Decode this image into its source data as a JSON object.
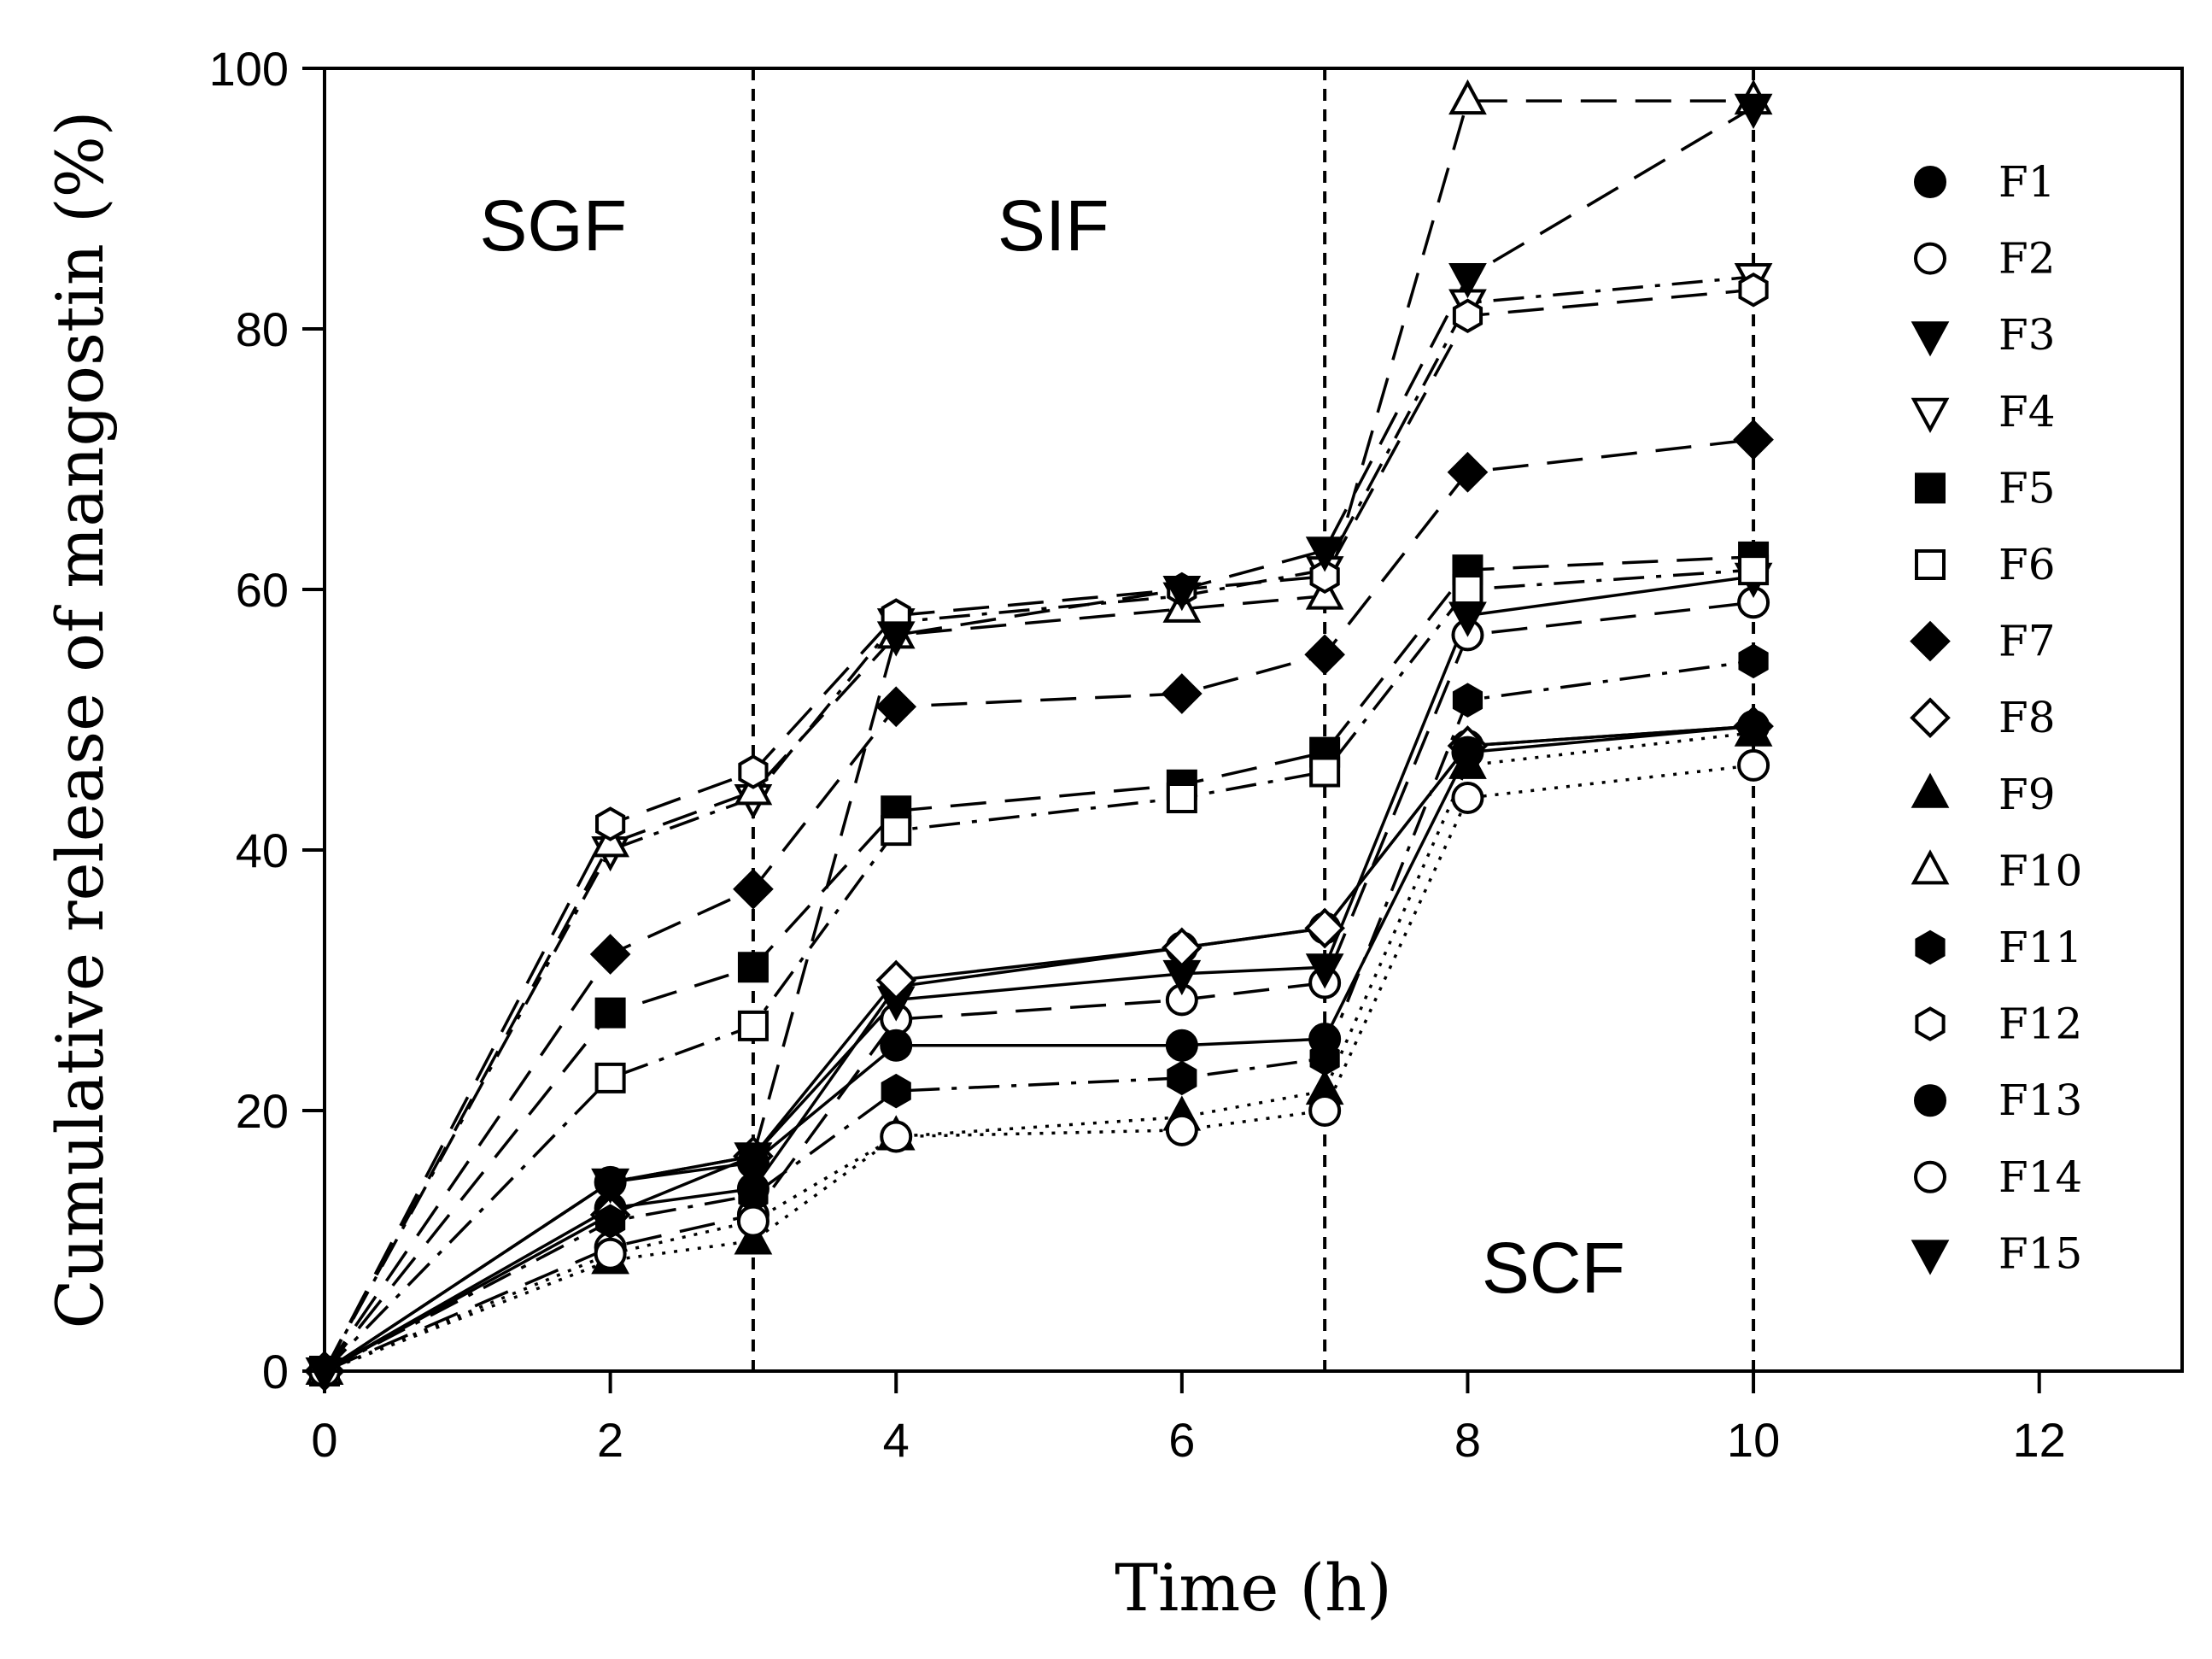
{
  "chart_data": {
    "type": "line",
    "title": "",
    "xlabel": "Time (h)",
    "ylabel": "Cumulative release of mangostin (%)",
    "xlim": [
      0,
      13
    ],
    "ylim": [
      0,
      100
    ],
    "xticks": [
      0,
      2,
      4,
      6,
      8,
      10,
      12
    ],
    "yticks": [
      0,
      20,
      40,
      60,
      80,
      100
    ],
    "x": [
      0,
      2,
      3,
      4,
      6,
      7,
      8,
      10
    ],
    "grid": false,
    "legend_position": "right",
    "phase_dividers": [
      3,
      7,
      10
    ],
    "phase_labels": [
      {
        "text": "SGF",
        "x": 1.6,
        "y": 88
      },
      {
        "text": "SIF",
        "x": 5.1,
        "y": 88
      },
      {
        "text": "SCF",
        "x": 8.6,
        "y": 8
      }
    ],
    "series": [
      {
        "name": "F1",
        "marker": "circle",
        "fill": "filled",
        "dash": "solid",
        "values": [
          0,
          12.5,
          14.0,
          29.5,
          32.5,
          34.0,
          48.0,
          49.5
        ]
      },
      {
        "name": "F2",
        "marker": "circle",
        "fill": "open",
        "dash": "longdash",
        "values": [
          0,
          9.5,
          12.0,
          27.0,
          28.5,
          29.8,
          56.5,
          59.0
        ]
      },
      {
        "name": "F3",
        "marker": "triangle-down",
        "fill": "filled",
        "dash": "solid",
        "values": [
          0,
          14.5,
          16.5,
          28.5,
          30.5,
          31.0,
          58.0,
          61.0
        ]
      },
      {
        "name": "F4",
        "marker": "triangle-down",
        "fill": "open",
        "dash": "dashdot",
        "values": [
          0,
          40.0,
          44.0,
          57.5,
          59.5,
          61.5,
          82.0,
          84.0
        ]
      },
      {
        "name": "F5",
        "marker": "square",
        "fill": "filled",
        "dash": "longdash",
        "values": [
          0,
          27.5,
          31.0,
          43.0,
          45.0,
          47.5,
          61.5,
          62.5
        ]
      },
      {
        "name": "F6",
        "marker": "square",
        "fill": "open",
        "dash": "dashdot",
        "values": [
          0,
          22.5,
          26.5,
          41.5,
          44.0,
          46.0,
          60.0,
          61.5
        ]
      },
      {
        "name": "F7",
        "marker": "diamond",
        "fill": "filled",
        "dash": "longdash",
        "values": [
          0,
          32.0,
          37.0,
          51.0,
          52.0,
          55.0,
          69.0,
          71.5
        ]
      },
      {
        "name": "F8",
        "marker": "diamond",
        "fill": "open",
        "dash": "solid",
        "values": [
          0,
          12.0,
          16.5,
          30.0,
          32.5,
          34.0,
          48.0,
          49.5
        ]
      },
      {
        "name": "F9",
        "marker": "triangle-up",
        "fill": "filled",
        "dash": "dotted",
        "values": [
          0,
          8.5,
          10.0,
          18.0,
          19.5,
          21.5,
          46.5,
          49.0
        ]
      },
      {
        "name": "F10",
        "marker": "triangle-up",
        "fill": "open",
        "dash": "longdash",
        "values": [
          0,
          40.5,
          44.5,
          56.5,
          58.5,
          59.5,
          97.5,
          97.5
        ]
      },
      {
        "name": "F11",
        "marker": "hexagon",
        "fill": "filled",
        "dash": "dashdot",
        "values": [
          0,
          11.5,
          13.5,
          21.5,
          22.5,
          24.0,
          51.5,
          54.5
        ]
      },
      {
        "name": "F12",
        "marker": "hexagon",
        "fill": "open",
        "dash": "longdash",
        "values": [
          0,
          42.0,
          46.0,
          58.0,
          60.0,
          61.0,
          81.0,
          83.0
        ]
      },
      {
        "name": "F13",
        "marker": "circle",
        "fill": "filled",
        "dash": "solid",
        "values": [
          0,
          14.5,
          16.0,
          25.0,
          25.0,
          25.5,
          47.5,
          49.5
        ]
      },
      {
        "name": "F14",
        "marker": "circle",
        "fill": "open",
        "dash": "dotted",
        "values": [
          0,
          9.0,
          11.5,
          18.0,
          18.5,
          20.0,
          44.0,
          46.5
        ]
      },
      {
        "name": "F15",
        "marker": "triangle-down",
        "fill": "filled",
        "dash": "longdash",
        "values": [
          0,
          14.5,
          16.5,
          56.5,
          60.0,
          63.0,
          84.0,
          97.0
        ]
      }
    ]
  }
}
